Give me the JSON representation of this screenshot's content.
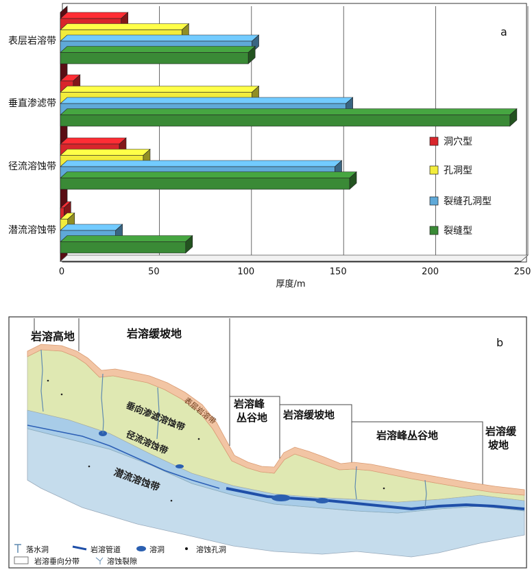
{
  "panel_a": {
    "label": "a",
    "chart_data": {
      "type": "bar",
      "orientation": "horizontal",
      "style": "3d",
      "categories": [
        "表层岩溶带",
        "垂直渗滤带",
        "径流溶蚀带",
        "潜流溶蚀带"
      ],
      "series": [
        {
          "name": "洞穴型",
          "color": "#d8262c",
          "values": [
            33,
            7,
            32,
            2
          ]
        },
        {
          "name": "孔洞型",
          "color": "#f2ec3c",
          "values": [
            66,
            104,
            45,
            4
          ]
        },
        {
          "name": "裂缝孔洞型",
          "color": "#5fa9d8",
          "values": [
            104,
            155,
            149,
            30
          ]
        },
        {
          "name": "裂缝型",
          "color": "#3a8a36",
          "values": [
            102,
            244,
            157,
            68
          ]
        }
      ],
      "xlabel": "厚度/m",
      "xlim": [
        0,
        250
      ],
      "xticks": [
        0,
        50,
        100,
        150,
        200,
        250
      ],
      "grid": "vertical",
      "legend_position": "right"
    }
  },
  "panel_b": {
    "label": "b",
    "regions": [
      "岩溶高地",
      "岩溶缓坡地",
      "岩溶峰丛谷地",
      "岩溶缓坡地",
      "岩溶峰丛谷地",
      "岩溶缓坡地"
    ],
    "zones": {
      "surface": "表层岩溶带",
      "vertical": "垂向渗滤溶蚀带",
      "runoff": "径流溶蚀带",
      "phreatic": "潜流溶蚀带"
    },
    "legend": {
      "sinkhole": "落水洞",
      "conduit": "岩溶管道",
      "cave": "溶洞",
      "pore": "溶蚀孔洞",
      "zoning": "岩溶垂向分带",
      "fracture": "溶蚀裂隙"
    },
    "colors": {
      "surface": "#f2c5a4",
      "vertical": "#dfe8b2",
      "runoff": "#a8cce8",
      "phreatic": "#c5dcec",
      "conduit": "#1f4fa8"
    }
  }
}
